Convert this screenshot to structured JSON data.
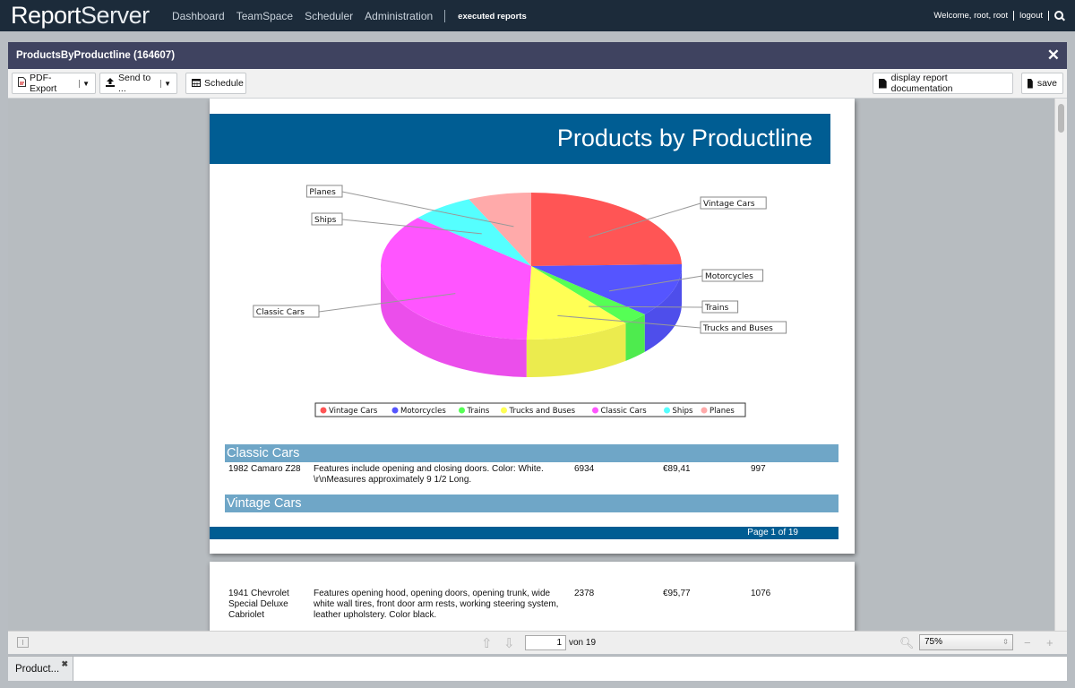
{
  "app": {
    "logo_main": "Report",
    "logo_thin": "Server"
  },
  "nav": {
    "items": [
      "Dashboard",
      "TeamSpace",
      "Scheduler",
      "Administration"
    ],
    "executed": "executed reports"
  },
  "user": {
    "welcome": "Welcome, root, root",
    "logout": "logout"
  },
  "window": {
    "title": "ProductsByProductline (164607)"
  },
  "toolbar": {
    "pdf_export": "PDF-Export",
    "send_to": "Send to ...",
    "schedule": "Schedule",
    "documentation": "display report documentation",
    "save": "save"
  },
  "report": {
    "title": "Products by Productline",
    "page_footer": "Page 1 of 19",
    "sections": [
      {
        "header": "Classic Cars",
        "rows": [
          {
            "name": "1982 Camaro Z28",
            "description": "Features include opening and closing doors. Color: White. \\r\\nMeasures approximately 9 1/2 Long.",
            "qty": "6934",
            "price": "€89,41",
            "count": "997"
          }
        ]
      },
      {
        "header": "Vintage Cars",
        "rows": []
      }
    ],
    "page2_row": {
      "name": "1941 Chevrolet Special Deluxe Cabriolet",
      "description": "Features opening hood, opening doors, opening trunk, wide white wall tires, front door arm rests, working steering system, leather upholstery. Color black.",
      "qty": "2378",
      "price": "€95,77",
      "count": "1076"
    }
  },
  "chart_data": {
    "type": "pie",
    "title": "",
    "categories": [
      "Vintage Cars",
      "Motorcycles",
      "Trains",
      "Trucks and Buses",
      "Classic Cars",
      "Ships",
      "Planes"
    ],
    "values": [
      24.6,
      11.8,
      2.8,
      11.3,
      35.9,
      6.8,
      6.8
    ],
    "colors": [
      "#ff5555",
      "#5555ff",
      "#55ff55",
      "#ffff55",
      "#ff55ff",
      "#55ffff",
      "#ffaaaa"
    ],
    "legend_position": "bottom",
    "style": "3d"
  },
  "pager": {
    "page": "1",
    "of": "von 19",
    "zoom": "75%"
  },
  "tabs": [
    {
      "label": "Product..."
    }
  ],
  "icons": {
    "close": "close-icon",
    "search": "search-icon",
    "pdf": "pdf-file-icon",
    "upload": "upload-icon",
    "calendar": "calendar-icon",
    "document": "document-icon"
  }
}
